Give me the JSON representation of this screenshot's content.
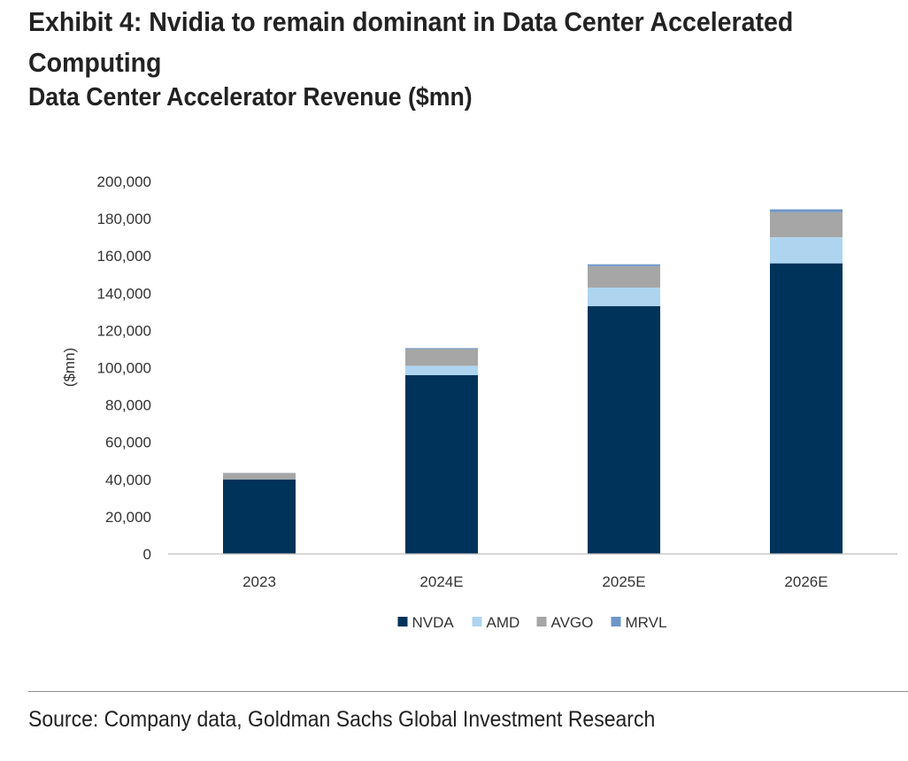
{
  "chart_data": {
    "type": "bar",
    "stacked": true,
    "title": "Exhibit 4: Nvidia to remain dominant in Data Center Accelerated Computing",
    "subtitle": "Data Center Accelerator Revenue ($mn)",
    "ylabel": "($mn)",
    "xlabel": "",
    "categories": [
      "2023",
      "2024E",
      "2025E",
      "2026E"
    ],
    "ylim": [
      0,
      200000
    ],
    "yticks": [
      0,
      20000,
      40000,
      60000,
      80000,
      100000,
      120000,
      140000,
      160000,
      180000,
      200000
    ],
    "ytick_labels": [
      "0",
      "20,000",
      "40,000",
      "60,000",
      "80,000",
      "100,000",
      "120,000",
      "140,000",
      "160,000",
      "180,000",
      "200,000"
    ],
    "grid": false,
    "legend_position": "bottom",
    "series": [
      {
        "name": "NVDA",
        "color": "#003359",
        "values": [
          40000,
          96000,
          133000,
          156000
        ]
      },
      {
        "name": "AMD",
        "color": "#aed4f0",
        "values": [
          0,
          5000,
          10000,
          14000
        ]
      },
      {
        "name": "AVGO",
        "color": "#a6a6a6",
        "values": [
          3500,
          9000,
          11500,
          13500
        ]
      },
      {
        "name": "MRVL",
        "color": "#6e96c8",
        "values": [
          0,
          500,
          1000,
          1500
        ]
      }
    ]
  },
  "source": "Source: Company data, Goldman Sachs Global Investment Research"
}
